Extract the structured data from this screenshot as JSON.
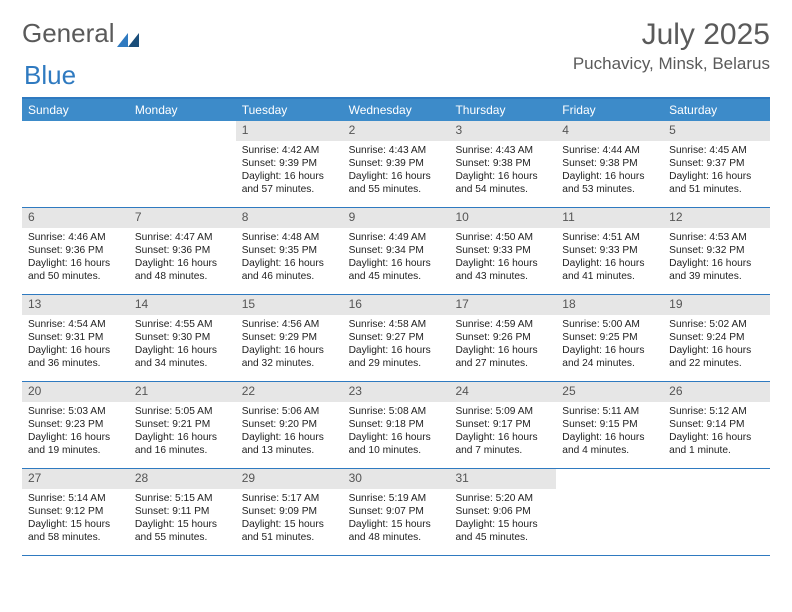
{
  "logo": {
    "text1": "General",
    "text2": "Blue"
  },
  "title": "July 2025",
  "location": "Puchavicy, Minsk, Belarus",
  "colors": {
    "accent": "#2f7ac0",
    "header_bg": "#3d8bc9",
    "numbar_bg": "#e6e6e6",
    "text": "#5a5a5a"
  },
  "days_of_week": [
    "Sunday",
    "Monday",
    "Tuesday",
    "Wednesday",
    "Thursday",
    "Friday",
    "Saturday"
  ],
  "weeks": [
    [
      {
        "blank": true
      },
      {
        "blank": true
      },
      {
        "num": "1",
        "sunrise": "Sunrise: 4:42 AM",
        "sunset": "Sunset: 9:39 PM",
        "daylight": "Daylight: 16 hours and 57 minutes."
      },
      {
        "num": "2",
        "sunrise": "Sunrise: 4:43 AM",
        "sunset": "Sunset: 9:39 PM",
        "daylight": "Daylight: 16 hours and 55 minutes."
      },
      {
        "num": "3",
        "sunrise": "Sunrise: 4:43 AM",
        "sunset": "Sunset: 9:38 PM",
        "daylight": "Daylight: 16 hours and 54 minutes."
      },
      {
        "num": "4",
        "sunrise": "Sunrise: 4:44 AM",
        "sunset": "Sunset: 9:38 PM",
        "daylight": "Daylight: 16 hours and 53 minutes."
      },
      {
        "num": "5",
        "sunrise": "Sunrise: 4:45 AM",
        "sunset": "Sunset: 9:37 PM",
        "daylight": "Daylight: 16 hours and 51 minutes."
      }
    ],
    [
      {
        "num": "6",
        "sunrise": "Sunrise: 4:46 AM",
        "sunset": "Sunset: 9:36 PM",
        "daylight": "Daylight: 16 hours and 50 minutes."
      },
      {
        "num": "7",
        "sunrise": "Sunrise: 4:47 AM",
        "sunset": "Sunset: 9:36 PM",
        "daylight": "Daylight: 16 hours and 48 minutes."
      },
      {
        "num": "8",
        "sunrise": "Sunrise: 4:48 AM",
        "sunset": "Sunset: 9:35 PM",
        "daylight": "Daylight: 16 hours and 46 minutes."
      },
      {
        "num": "9",
        "sunrise": "Sunrise: 4:49 AM",
        "sunset": "Sunset: 9:34 PM",
        "daylight": "Daylight: 16 hours and 45 minutes."
      },
      {
        "num": "10",
        "sunrise": "Sunrise: 4:50 AM",
        "sunset": "Sunset: 9:33 PM",
        "daylight": "Daylight: 16 hours and 43 minutes."
      },
      {
        "num": "11",
        "sunrise": "Sunrise: 4:51 AM",
        "sunset": "Sunset: 9:33 PM",
        "daylight": "Daylight: 16 hours and 41 minutes."
      },
      {
        "num": "12",
        "sunrise": "Sunrise: 4:53 AM",
        "sunset": "Sunset: 9:32 PM",
        "daylight": "Daylight: 16 hours and 39 minutes."
      }
    ],
    [
      {
        "num": "13",
        "sunrise": "Sunrise: 4:54 AM",
        "sunset": "Sunset: 9:31 PM",
        "daylight": "Daylight: 16 hours and 36 minutes."
      },
      {
        "num": "14",
        "sunrise": "Sunrise: 4:55 AM",
        "sunset": "Sunset: 9:30 PM",
        "daylight": "Daylight: 16 hours and 34 minutes."
      },
      {
        "num": "15",
        "sunrise": "Sunrise: 4:56 AM",
        "sunset": "Sunset: 9:29 PM",
        "daylight": "Daylight: 16 hours and 32 minutes."
      },
      {
        "num": "16",
        "sunrise": "Sunrise: 4:58 AM",
        "sunset": "Sunset: 9:27 PM",
        "daylight": "Daylight: 16 hours and 29 minutes."
      },
      {
        "num": "17",
        "sunrise": "Sunrise: 4:59 AM",
        "sunset": "Sunset: 9:26 PM",
        "daylight": "Daylight: 16 hours and 27 minutes."
      },
      {
        "num": "18",
        "sunrise": "Sunrise: 5:00 AM",
        "sunset": "Sunset: 9:25 PM",
        "daylight": "Daylight: 16 hours and 24 minutes."
      },
      {
        "num": "19",
        "sunrise": "Sunrise: 5:02 AM",
        "sunset": "Sunset: 9:24 PM",
        "daylight": "Daylight: 16 hours and 22 minutes."
      }
    ],
    [
      {
        "num": "20",
        "sunrise": "Sunrise: 5:03 AM",
        "sunset": "Sunset: 9:23 PM",
        "daylight": "Daylight: 16 hours and 19 minutes."
      },
      {
        "num": "21",
        "sunrise": "Sunrise: 5:05 AM",
        "sunset": "Sunset: 9:21 PM",
        "daylight": "Daylight: 16 hours and 16 minutes."
      },
      {
        "num": "22",
        "sunrise": "Sunrise: 5:06 AM",
        "sunset": "Sunset: 9:20 PM",
        "daylight": "Daylight: 16 hours and 13 minutes."
      },
      {
        "num": "23",
        "sunrise": "Sunrise: 5:08 AM",
        "sunset": "Sunset: 9:18 PM",
        "daylight": "Daylight: 16 hours and 10 minutes."
      },
      {
        "num": "24",
        "sunrise": "Sunrise: 5:09 AM",
        "sunset": "Sunset: 9:17 PM",
        "daylight": "Daylight: 16 hours and 7 minutes."
      },
      {
        "num": "25",
        "sunrise": "Sunrise: 5:11 AM",
        "sunset": "Sunset: 9:15 PM",
        "daylight": "Daylight: 16 hours and 4 minutes."
      },
      {
        "num": "26",
        "sunrise": "Sunrise: 5:12 AM",
        "sunset": "Sunset: 9:14 PM",
        "daylight": "Daylight: 16 hours and 1 minute."
      }
    ],
    [
      {
        "num": "27",
        "sunrise": "Sunrise: 5:14 AM",
        "sunset": "Sunset: 9:12 PM",
        "daylight": "Daylight: 15 hours and 58 minutes."
      },
      {
        "num": "28",
        "sunrise": "Sunrise: 5:15 AM",
        "sunset": "Sunset: 9:11 PM",
        "daylight": "Daylight: 15 hours and 55 minutes."
      },
      {
        "num": "29",
        "sunrise": "Sunrise: 5:17 AM",
        "sunset": "Sunset: 9:09 PM",
        "daylight": "Daylight: 15 hours and 51 minutes."
      },
      {
        "num": "30",
        "sunrise": "Sunrise: 5:19 AM",
        "sunset": "Sunset: 9:07 PM",
        "daylight": "Daylight: 15 hours and 48 minutes."
      },
      {
        "num": "31",
        "sunrise": "Sunrise: 5:20 AM",
        "sunset": "Sunset: 9:06 PM",
        "daylight": "Daylight: 15 hours and 45 minutes."
      },
      {
        "blank": true
      },
      {
        "blank": true
      }
    ]
  ]
}
